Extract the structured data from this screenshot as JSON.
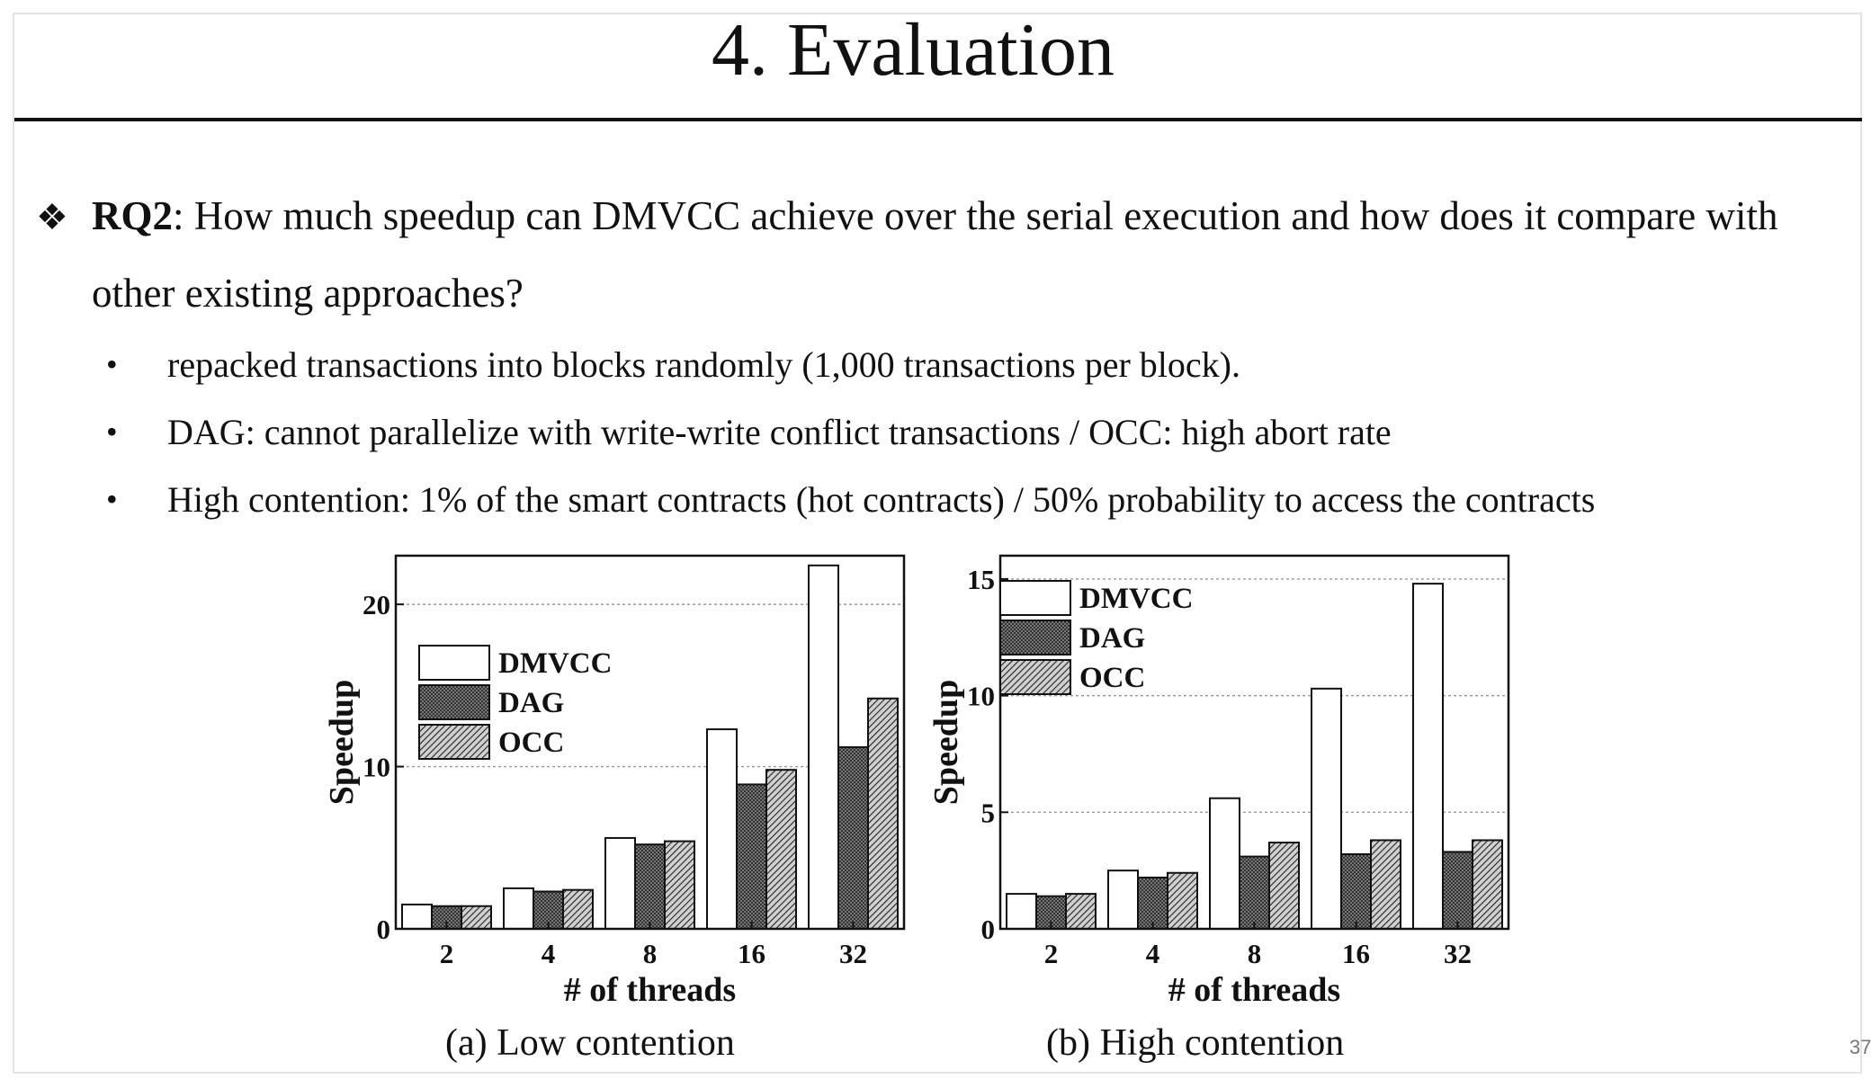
{
  "slide": {
    "title": "4. Evaluation",
    "page_number": "37"
  },
  "rq": {
    "bullet_icon": "diamond-bullet-icon",
    "label": "RQ2",
    "text": ": How much speedup can DMVCC achieve over the serial execution and how does it compare with",
    "text_cont": "other existing approaches?"
  },
  "bullets": [
    "repacked transactions into blocks randomly (1,000 transactions per block).",
    "DAG: cannot parallelize with write-write conflict transactions / OCC: high abort rate",
    "High contention: 1% of the smart contracts (hot contracts) / 50% probability to access the contracts"
  ],
  "colors": {
    "dmvcc": "#ffffff",
    "dag": "#6a6a6a",
    "occ": "#8a8a8a",
    "stroke": "#111111"
  },
  "chart_data": [
    {
      "type": "bar",
      "caption": "(a) Low contention",
      "xlabel": "# of threads",
      "ylabel": "Speedup",
      "categories": [
        "2",
        "4",
        "8",
        "16",
        "32"
      ],
      "ylim": [
        0,
        23
      ],
      "yticks": [
        0,
        10,
        20
      ],
      "grid": true,
      "legend": "top-left",
      "series": [
        {
          "name": "DMVCC",
          "values": [
            1.5,
            2.5,
            5.6,
            12.3,
            22.4
          ]
        },
        {
          "name": "DAG",
          "values": [
            1.4,
            2.3,
            5.2,
            8.9,
            11.2
          ]
        },
        {
          "name": "OCC",
          "values": [
            1.4,
            2.4,
            5.4,
            9.8,
            14.2
          ]
        }
      ]
    },
    {
      "type": "bar",
      "caption": "(b) High contention",
      "xlabel": "# of threads",
      "ylabel": "Speedup",
      "categories": [
        "2",
        "4",
        "8",
        "16",
        "32"
      ],
      "ylim": [
        0,
        16
      ],
      "yticks": [
        0,
        5,
        10,
        15
      ],
      "grid": true,
      "legend": "top-left",
      "series": [
        {
          "name": "DMVCC",
          "values": [
            1.5,
            2.5,
            5.6,
            10.3,
            14.8
          ]
        },
        {
          "name": "DAG",
          "values": [
            1.4,
            2.2,
            3.1,
            3.2,
            3.3
          ]
        },
        {
          "name": "OCC",
          "values": [
            1.5,
            2.4,
            3.7,
            3.8,
            3.8
          ]
        }
      ]
    }
  ]
}
